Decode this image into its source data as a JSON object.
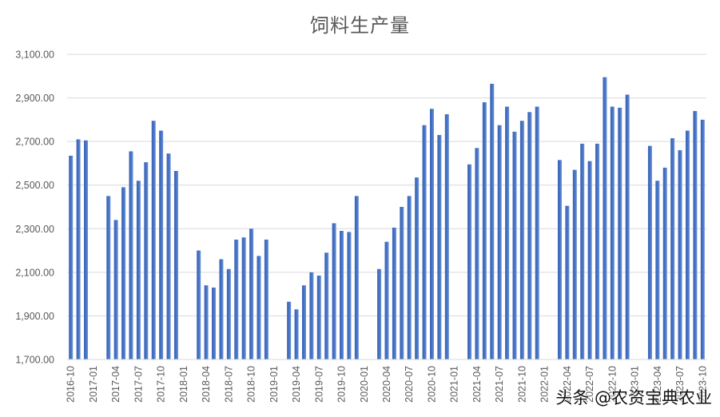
{
  "chart_data": {
    "type": "bar",
    "title": "饲料生产量",
    "xlabel": "",
    "ylabel": "",
    "ylim": [
      1700,
      3100
    ],
    "yticks": [
      "1,700.00",
      "1,900.00",
      "2,100.00",
      "2,300.00",
      "2,500.00",
      "2,700.00",
      "2,900.00",
      "3,100.00"
    ],
    "ytick_values": [
      1700,
      1900,
      2100,
      2300,
      2500,
      2700,
      2900,
      3100
    ],
    "grid": true,
    "legend": null,
    "bar_color": "#4472C4",
    "xtick_labels": [
      "2016-10",
      "2017-01",
      "2017-04",
      "2017-07",
      "2017-10",
      "2018-01",
      "2018-04",
      "2018-07",
      "2018-10",
      "2019-01",
      "2019-04",
      "2019-07",
      "2019-10",
      "2020-01",
      "2020-04",
      "2020-07",
      "2020-10",
      "2021-01",
      "2021-04",
      "2021-07",
      "2021-10",
      "2022-01",
      "2022-04",
      "2022-07",
      "2022-10",
      "2023-01",
      "2023-04",
      "2023-07",
      "2023-10"
    ],
    "start_month": "2016-10",
    "categories": [
      "2016-10",
      "2016-11",
      "2016-12",
      "2017-01",
      "2017-02",
      "2017-03",
      "2017-04",
      "2017-05",
      "2017-06",
      "2017-07",
      "2017-08",
      "2017-09",
      "2017-10",
      "2017-11",
      "2017-12",
      "2018-01",
      "2018-02",
      "2018-03",
      "2018-04",
      "2018-05",
      "2018-06",
      "2018-07",
      "2018-08",
      "2018-09",
      "2018-10",
      "2018-11",
      "2018-12",
      "2019-01",
      "2019-02",
      "2019-03",
      "2019-04",
      "2019-05",
      "2019-06",
      "2019-07",
      "2019-08",
      "2019-09",
      "2019-10",
      "2019-11",
      "2019-12",
      "2020-01",
      "2020-02",
      "2020-03",
      "2020-04",
      "2020-05",
      "2020-06",
      "2020-07",
      "2020-08",
      "2020-09",
      "2020-10",
      "2020-11",
      "2020-12",
      "2021-01",
      "2021-02",
      "2021-03",
      "2021-04",
      "2021-05",
      "2021-06",
      "2021-07",
      "2021-08",
      "2021-09",
      "2021-10",
      "2021-11",
      "2021-12",
      "2022-01",
      "2022-02",
      "2022-03",
      "2022-04",
      "2022-05",
      "2022-06",
      "2022-07",
      "2022-08",
      "2022-09",
      "2022-10",
      "2022-11",
      "2022-12",
      "2023-01",
      "2023-02",
      "2023-03",
      "2023-04",
      "2023-05",
      "2023-06",
      "2023-07",
      "2023-08",
      "2023-09",
      "2023-10"
    ],
    "values": [
      2635,
      2710,
      2705,
      null,
      null,
      2450,
      2340,
      2490,
      2655,
      2520,
      2605,
      2795,
      2750,
      2645,
      2565,
      null,
      null,
      2200,
      2040,
      2030,
      2160,
      2115,
      2250,
      2260,
      2300,
      2175,
      2250,
      null,
      null,
      1965,
      1930,
      2040,
      2100,
      2085,
      2190,
      2325,
      2290,
      2285,
      2450,
      null,
      null,
      2115,
      2240,
      2305,
      2400,
      2450,
      2535,
      2775,
      2850,
      2730,
      2825,
      null,
      null,
      2595,
      2670,
      2880,
      2965,
      2775,
      2860,
      2745,
      2795,
      2835,
      2860,
      null,
      null,
      2615,
      2405,
      2570,
      2690,
      2610,
      2690,
      2995,
      2860,
      2855,
      2915,
      null,
      null,
      2680,
      2520,
      2580,
      2715,
      2660,
      2750,
      2840,
      2800
    ]
  },
  "watermark": "头条 @农资宝典农业"
}
